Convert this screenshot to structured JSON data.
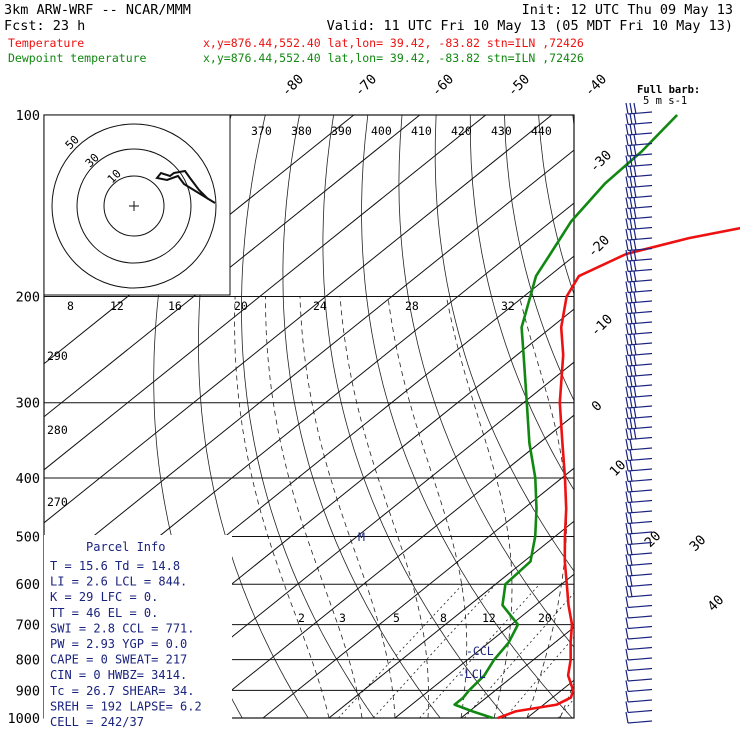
{
  "header": {
    "model": "3km ARW-WRF -- NCAR/MMM",
    "init": "Init: 12 UTC Thu 09 May 13",
    "fcst": "Fcst:    23 h",
    "valid": "Valid: 11 UTC Fri 10 May 13 (05 MDT Fri 10 May 13)",
    "temp_label": "Temperature",
    "dew_label": "Dewpoint temperature",
    "loc_temp": "x,y=876.44,552.40   lat,lon= 39.42, -83.82  stn=ILN ,72426",
    "loc_dew": "x,y=876.44,552.40   lat,lon= 39.42, -83.82  stn=ILN ,72426"
  },
  "colors": {
    "temperature": "#ee1111",
    "dewpoint": "#118811",
    "barb": "#1a237e",
    "parcel": "#1a237e"
  },
  "wind_legend": {
    "title": "Full barb:",
    "value": "5 m s-1"
  },
  "chart_data": {
    "type": "line",
    "title": "",
    "y_axis": {
      "label": "pressure (hPa)",
      "scale": "log",
      "ticks": [
        100,
        200,
        300,
        400,
        500,
        600,
        700,
        800,
        900,
        1000
      ]
    },
    "x_axis": {
      "label": "temperature (C)",
      "skewed": true,
      "ticks": [
        -80,
        -70,
        -60,
        -50,
        -40,
        -30,
        -20,
        -10,
        0,
        10,
        20,
        30,
        40
      ]
    },
    "theta_labels": [
      "370",
      "380",
      "390",
      "400",
      "410",
      "420",
      "430",
      "440"
    ],
    "theta_left_labels": [
      "290",
      "280",
      "270"
    ],
    "mixing_ratio_labels": [
      "2",
      "3",
      "5",
      "8",
      "12",
      "20"
    ],
    "hodograph_speed_labels": [
      "8",
      "12",
      "16",
      "20",
      "24",
      "28",
      "32"
    ],
    "hodograph_units": "kts",
    "hodograph_ring_labels": [
      "50",
      "30",
      "10"
    ],
    "levels_label": {
      "ccl": "-CCL",
      "lcl": "-LCL",
      "m": "M"
    },
    "series": [
      {
        "name": "Temperature",
        "points": [
          [
            1000,
            15.6
          ],
          [
            975,
            17.0
          ],
          [
            950,
            22.0
          ],
          [
            925,
            22.8
          ],
          [
            900,
            21.8
          ],
          [
            850,
            18.2
          ],
          [
            800,
            15.6
          ],
          [
            750,
            12.4
          ],
          [
            700,
            9.2
          ],
          [
            650,
            5.0
          ],
          [
            600,
            0.8
          ],
          [
            550,
            -3.8
          ],
          [
            500,
            -8.5
          ],
          [
            450,
            -13.5
          ],
          [
            400,
            -19.5
          ],
          [
            350,
            -26.5
          ],
          [
            300,
            -34.5
          ],
          [
            250,
            -43.0
          ],
          [
            225,
            -48.5
          ],
          [
            200,
            -53.5
          ],
          [
            185,
            -55.5
          ],
          [
            170,
            -52.5
          ],
          [
            160,
            -46.0
          ],
          [
            150,
            -36.0
          ],
          [
            140,
            -30.0
          ],
          [
            130,
            -32.0
          ],
          [
            120,
            -34.5
          ],
          [
            110,
            -37.0
          ],
          [
            100,
            -40.0
          ]
        ]
      },
      {
        "name": "Dewpoint temperature",
        "points": [
          [
            1000,
            14.8
          ],
          [
            975,
            10.5
          ],
          [
            950,
            6.5
          ],
          [
            925,
            6.5
          ],
          [
            900,
            6.0
          ],
          [
            850,
            5.5
          ],
          [
            800,
            4.0
          ],
          [
            750,
            3.0
          ],
          [
            700,
            1.0
          ],
          [
            650,
            -5.0
          ],
          [
            600,
            -8.5
          ],
          [
            550,
            -9.0
          ],
          [
            500,
            -13.0
          ],
          [
            450,
            -18.0
          ],
          [
            400,
            -24.0
          ],
          [
            350,
            -31.5
          ],
          [
            300,
            -39.5
          ],
          [
            250,
            -49.0
          ],
          [
            225,
            -54.5
          ],
          [
            200,
            -59.0
          ],
          [
            185,
            -62.0
          ],
          [
            170,
            -64.0
          ],
          [
            150,
            -67.0
          ],
          [
            130,
            -69.0
          ],
          [
            115,
            -69.5
          ],
          [
            100,
            -71.0
          ]
        ]
      }
    ],
    "wind_barbs_present": true
  },
  "parcel_info": {
    "title": "Parcel Info",
    "rows": [
      "T   =   15.6  Td =  14.8",
      "LI  =    2.6  LCL =  844.",
      "K   =     29  LFC =    0.",
      "TT  =     46  EL  =    0.",
      "SWI =    2.8  CCL =  771.",
      "PW  =   2.93  YGP =   0.0",
      "CAPE =     0  SWEAT=  217",
      "CIN =      0  HWBZ= 3414.",
      "Tc  =   26.7  SHEAR=  34.",
      "SREH =   192  LAPSE=  6.2",
      "CELL = 242/37"
    ]
  }
}
